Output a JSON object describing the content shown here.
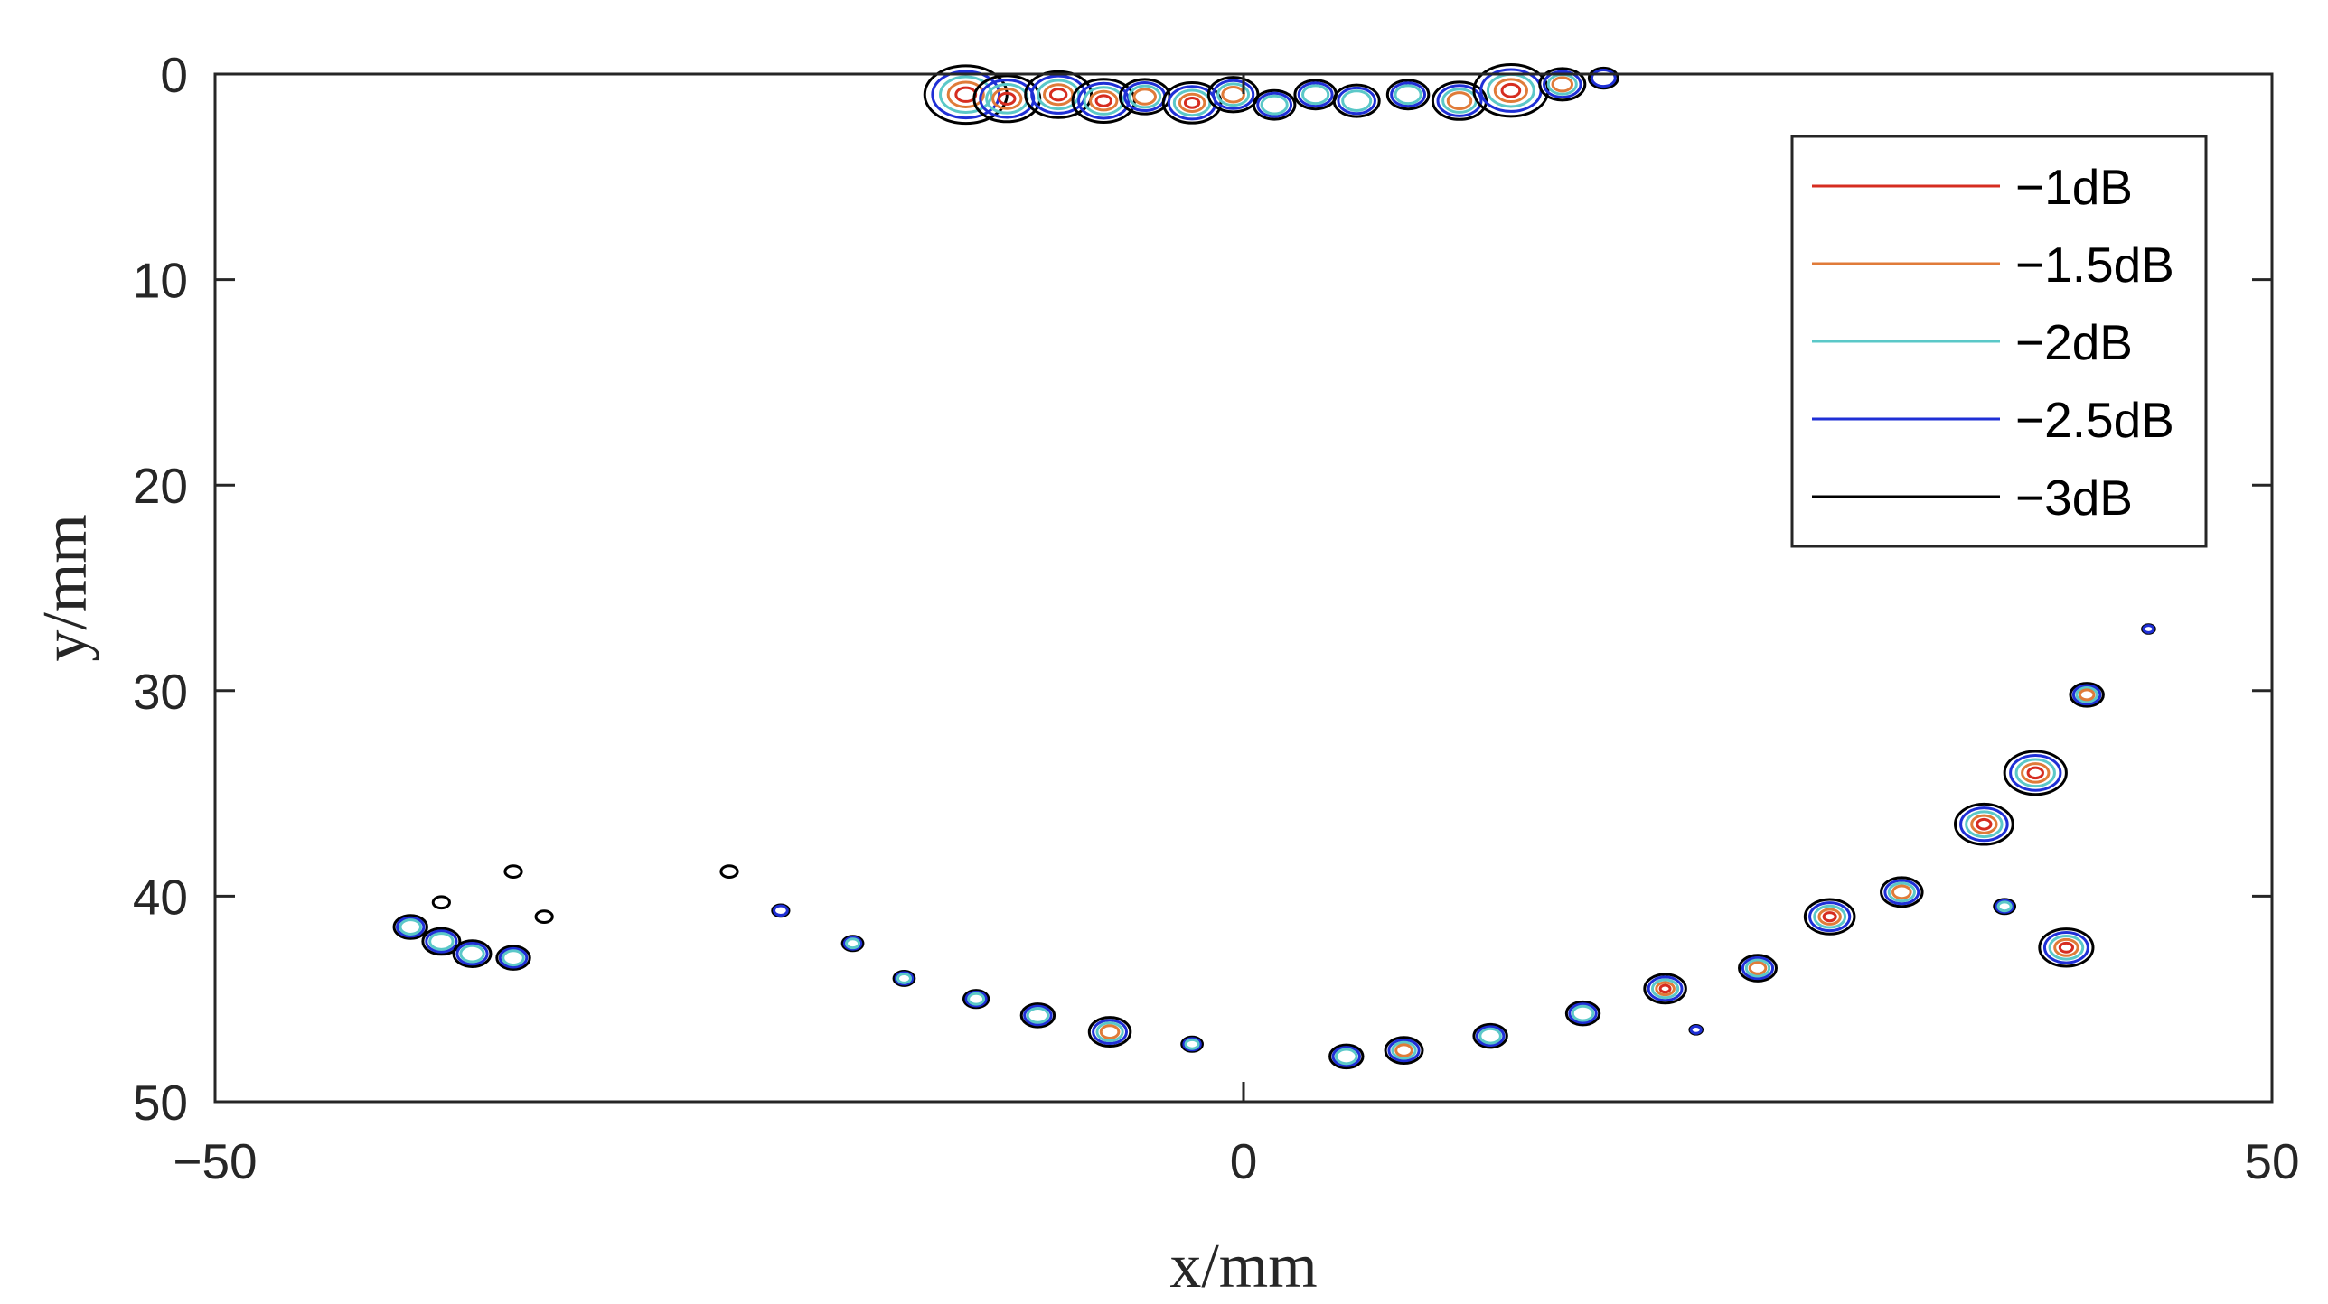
{
  "chart_data": {
    "type": "contour",
    "xlabel": "x/mm",
    "ylabel": "y/mm",
    "xlim": [
      -50,
      50
    ],
    "ylim": [
      0,
      50
    ],
    "y_axis_reversed": true,
    "x_ticks": [
      "−50",
      "0",
      "50"
    ],
    "y_ticks": [
      "0",
      "10",
      "20",
      "30",
      "40",
      "50"
    ],
    "grid": false,
    "legend_position": "top-right",
    "legend": [
      {
        "name": "−1dB",
        "color": "#d62d20"
      },
      {
        "name": "−1.5dB",
        "color": "#e07b39"
      },
      {
        "name": "−2dB",
        "color": "#5bc8c8"
      },
      {
        "name": "−2.5dB",
        "color": "#1f2fd6"
      },
      {
        "name": "−3dB",
        "color": "#000000"
      }
    ],
    "blobs": [
      {
        "x": -13.5,
        "y": 1.0,
        "r": 2.0,
        "levels": 5
      },
      {
        "x": -11.5,
        "y": 1.2,
        "r": 1.6,
        "levels": 5
      },
      {
        "x": -9.0,
        "y": 1.0,
        "r": 1.6,
        "levels": 5
      },
      {
        "x": -6.8,
        "y": 1.3,
        "r": 1.5,
        "levels": 5
      },
      {
        "x": -4.8,
        "y": 1.1,
        "r": 1.2,
        "levels": 4
      },
      {
        "x": -2.5,
        "y": 1.4,
        "r": 1.4,
        "levels": 5
      },
      {
        "x": -0.5,
        "y": 1.0,
        "r": 1.2,
        "levels": 4
      },
      {
        "x": 1.5,
        "y": 1.5,
        "r": 1.0,
        "levels": 3
      },
      {
        "x": 3.5,
        "y": 1.0,
        "r": 1.0,
        "levels": 3
      },
      {
        "x": 5.5,
        "y": 1.3,
        "r": 1.1,
        "levels": 3
      },
      {
        "x": 8.0,
        "y": 1.0,
        "r": 1.0,
        "levels": 3
      },
      {
        "x": 10.5,
        "y": 1.3,
        "r": 1.3,
        "levels": 4
      },
      {
        "x": 13.0,
        "y": 0.8,
        "r": 1.8,
        "levels": 5
      },
      {
        "x": 15.5,
        "y": 0.5,
        "r": 1.1,
        "levels": 4
      },
      {
        "x": 17.5,
        "y": 0.2,
        "r": 0.7,
        "levels": 2
      },
      {
        "x": -40.5,
        "y": 41.5,
        "r": 0.8,
        "levels": 3
      },
      {
        "x": -39.0,
        "y": 42.2,
        "r": 0.9,
        "levels": 3
      },
      {
        "x": -37.5,
        "y": 42.8,
        "r": 0.9,
        "levels": 3
      },
      {
        "x": -35.5,
        "y": 43.0,
        "r": 0.8,
        "levels": 3
      },
      {
        "x": -39.0,
        "y": 40.3,
        "r": 0.4,
        "levels": 1
      },
      {
        "x": -34.0,
        "y": 41.0,
        "r": 0.4,
        "levels": 1
      },
      {
        "x": -35.5,
        "y": 38.8,
        "r": 0.4,
        "levels": 1
      },
      {
        "x": -25.0,
        "y": 38.8,
        "r": 0.4,
        "levels": 1
      },
      {
        "x": -22.5,
        "y": 40.7,
        "r": 0.4,
        "levels": 2
      },
      {
        "x": -19.0,
        "y": 42.3,
        "r": 0.5,
        "levels": 3
      },
      {
        "x": -16.5,
        "y": 44.0,
        "r": 0.5,
        "levels": 3
      },
      {
        "x": -13.0,
        "y": 45.0,
        "r": 0.6,
        "levels": 3
      },
      {
        "x": -10.0,
        "y": 45.8,
        "r": 0.8,
        "levels": 3
      },
      {
        "x": -6.5,
        "y": 46.6,
        "r": 1.0,
        "levels": 4
      },
      {
        "x": -2.5,
        "y": 47.2,
        "r": 0.5,
        "levels": 3
      },
      {
        "x": 5.0,
        "y": 47.8,
        "r": 0.8,
        "levels": 3
      },
      {
        "x": 7.8,
        "y": 47.5,
        "r": 0.9,
        "levels": 4
      },
      {
        "x": 12.0,
        "y": 46.8,
        "r": 0.8,
        "levels": 3
      },
      {
        "x": 16.5,
        "y": 45.7,
        "r": 0.8,
        "levels": 3
      },
      {
        "x": 20.5,
        "y": 44.5,
        "r": 1.0,
        "levels": 5
      },
      {
        "x": 25.0,
        "y": 43.5,
        "r": 0.9,
        "levels": 4
      },
      {
        "x": 28.5,
        "y": 41.0,
        "r": 1.2,
        "levels": 5
      },
      {
        "x": 32.0,
        "y": 39.8,
        "r": 1.0,
        "levels": 4
      },
      {
        "x": 36.0,
        "y": 36.5,
        "r": 1.4,
        "levels": 5
      },
      {
        "x": 38.5,
        "y": 34.0,
        "r": 1.5,
        "levels": 5
      },
      {
        "x": 41.0,
        "y": 30.2,
        "r": 0.8,
        "levels": 4
      },
      {
        "x": 40.0,
        "y": 42.5,
        "r": 1.3,
        "levels": 5
      },
      {
        "x": 44.0,
        "y": 27.0,
        "r": 0.3,
        "levels": 2
      },
      {
        "x": 37.0,
        "y": 40.5,
        "r": 0.5,
        "levels": 3
      },
      {
        "x": 22.0,
        "y": 46.5,
        "r": 0.3,
        "levels": 2
      }
    ]
  }
}
